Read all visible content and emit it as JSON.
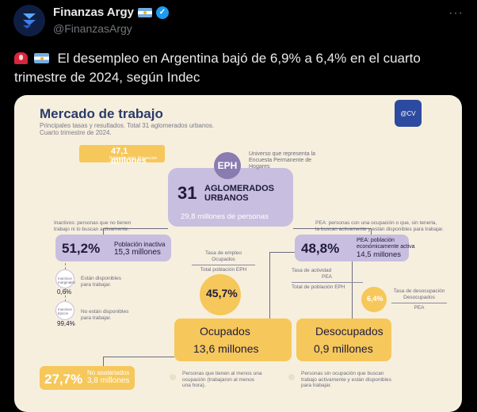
{
  "account": {
    "name": "Finanzas Argy",
    "handle": "@FinanzasArgy"
  },
  "tweet": {
    "text": "El desempleo en Argentina bajó de 6,9% a 6,4% en el cuarto trimestre de 2024, según Indec"
  },
  "infographic": {
    "title": "Mercado de trabajo",
    "subtitle_1": "Principales tasas y resultados. Total 31 aglomerados urbanos.",
    "subtitle_2": "Cuarto trimestre de 2024.",
    "logo_text": "@CV",
    "population": {
      "value": "47,1 millones",
      "caption": "Población total. Proyección 2024"
    },
    "eph": {
      "badge": "EPH",
      "description_1": "Universo que representa la",
      "description_2": "Encuesta Permanente de Hogares",
      "number": "31",
      "label_1": "AGLOMERADOS",
      "label_2": "URBANOS",
      "people": "29,8 millones de personas"
    },
    "inactivos": {
      "note_1": "Inactivos: personas que no tienen",
      "note_2": "trabajo ni lo buscan activamente.",
      "percent": "51,2%",
      "label_1": "Población inactiva",
      "label_2": "15,3 millones"
    },
    "pea": {
      "note_1": "PEA: personas con una ocupación o que, sin tenerla,",
      "note_2": "la buscan activamente y están disponibles para trabajar.",
      "percent": "48,8%",
      "label_1": "PEA: población",
      "label_2": "económicamente activa",
      "label_3": "14,5 millones"
    },
    "marginales": {
      "label_1": "Inactivos",
      "label_2": "marginales",
      "percent": "0,6%",
      "note_1": "Están disponibles",
      "note_2": "para trabajar."
    },
    "tipicos": {
      "label_1": "Inactivos",
      "label_2": "típicos",
      "percent": "99,4%",
      "note_1": "No están disponibles",
      "note_2": "para trabajar."
    },
    "empleo": {
      "label_1": "Tasa de empleo",
      "label_2": "Ocupados",
      "label_3": "Total población EPH",
      "percent": "45,7%"
    },
    "actividad": {
      "label_1": "Tasa de actividad",
      "label_2": "PEA",
      "label_3": "Total de población EPH"
    },
    "desocupacion": {
      "label_1": "Tasa de desocupación",
      "label_2": "Desocupados",
      "label_3": "PEA",
      "percent": "6,4%"
    },
    "ocupados": {
      "label": "Ocupados",
      "value": "13,6 millones",
      "note_1": "Personas que tienen al menos una",
      "note_2": "ocupación (trabajaron al menos",
      "note_3": "una hora)."
    },
    "desocupados": {
      "label": "Desocupados",
      "value": "0,9 millones",
      "note_1": "Personas sin ocupación que buscan",
      "note_2": "trabajo activamente y están disponibles",
      "note_3": "para trabajar."
    },
    "no_asalariados": {
      "percent": "27,7%",
      "label_1": "No asalariados",
      "label_2": "3,8 millones"
    }
  }
}
